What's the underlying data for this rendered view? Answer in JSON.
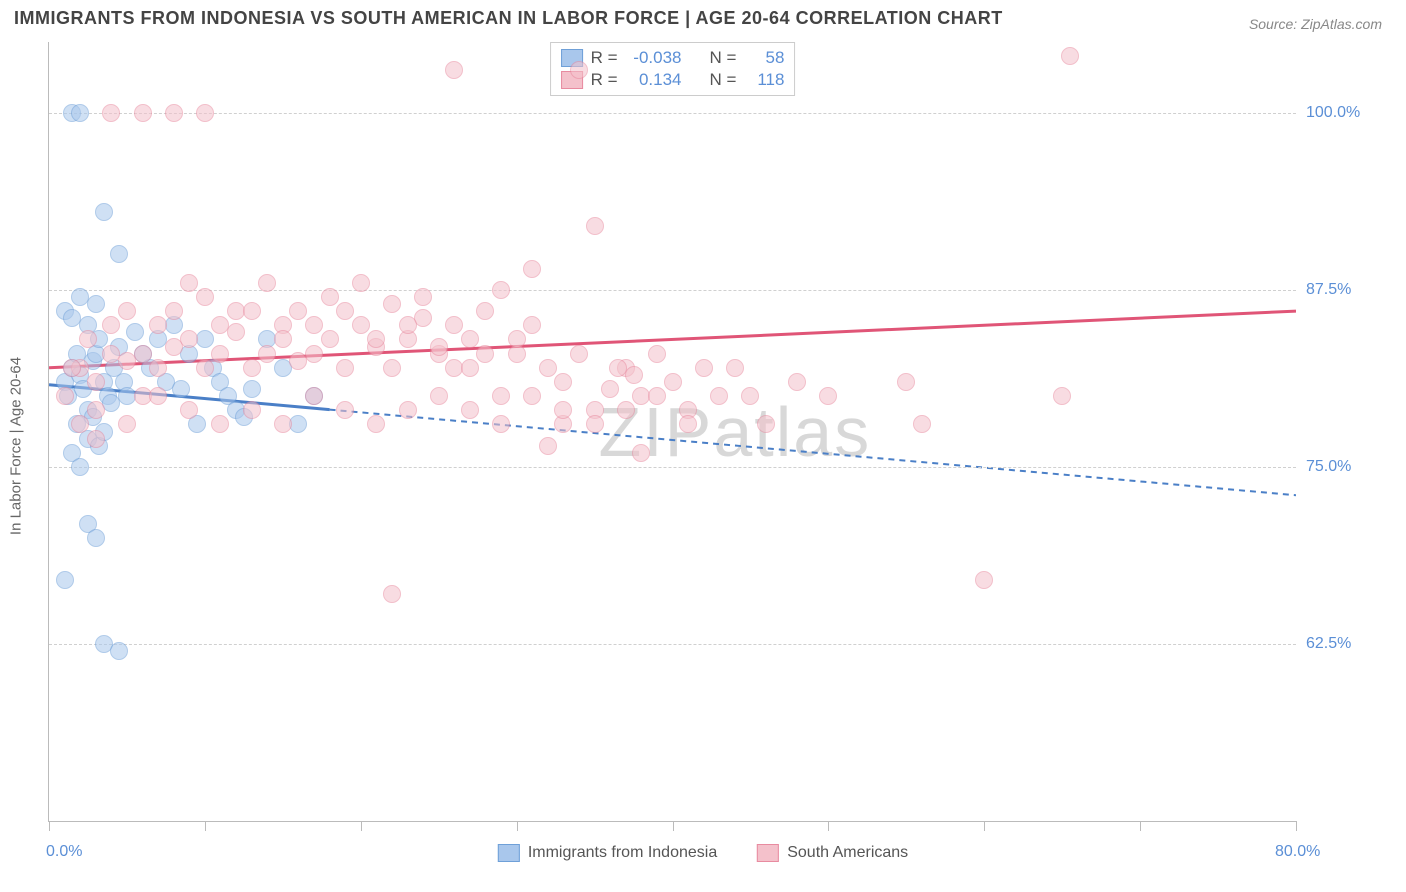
{
  "title": "IMMIGRANTS FROM INDONESIA VS SOUTH AMERICAN IN LABOR FORCE | AGE 20-64 CORRELATION CHART",
  "source": "Source: ZipAtlas.com",
  "watermark": "ZIPatlas",
  "chart": {
    "type": "scatter",
    "background_color": "#ffffff",
    "grid_color": "#d0d0d0",
    "axis_color": "#bbbbbb",
    "tick_label_color": "#5b8fd6",
    "axis_title_color": "#666666",
    "y_axis_title": "In Labor Force | Age 20-64",
    "xlim": [
      0,
      80
    ],
    "ylim": [
      50,
      105
    ],
    "x_min_label": "0.0%",
    "x_max_label": "80.0%",
    "y_ticks": [
      62.5,
      75.0,
      87.5,
      100.0
    ],
    "y_tick_labels": [
      "62.5%",
      "75.0%",
      "87.5%",
      "100.0%"
    ],
    "x_tick_positions": [
      0,
      10,
      20,
      30,
      40,
      50,
      60,
      70,
      80
    ],
    "point_radius": 9,
    "point_opacity": 0.55,
    "title_fontsize": 18,
    "tick_fontsize": 16,
    "series": [
      {
        "name": "Immigrants from Indonesia",
        "fill_color": "#a9c7ec",
        "stroke_color": "#6fa0d8",
        "trend_color": "#4a7fc7",
        "trend_dashed_after_x": 18,
        "trend": {
          "y_at_xmin": 80.8,
          "y_at_xmax": 73.0
        },
        "r_value": "-0.038",
        "n_value": "58",
        "points": [
          [
            1,
            81
          ],
          [
            1.2,
            80
          ],
          [
            1.5,
            82
          ],
          [
            1.8,
            83
          ],
          [
            2,
            81.5
          ],
          [
            2.2,
            80.5
          ],
          [
            2.5,
            79
          ],
          [
            2.8,
            82.5
          ],
          [
            3,
            83
          ],
          [
            3.2,
            84
          ],
          [
            3.5,
            81
          ],
          [
            3.8,
            80
          ],
          [
            4,
            79.5
          ],
          [
            4.2,
            82
          ],
          [
            4.5,
            83.5
          ],
          [
            4.8,
            81
          ],
          [
            5,
            80
          ],
          [
            1,
            86
          ],
          [
            1.5,
            85.5
          ],
          [
            2,
            87
          ],
          [
            2.5,
            85
          ],
          [
            3,
            86.5
          ],
          [
            1.5,
            76
          ],
          [
            2,
            75
          ],
          [
            2.5,
            77
          ],
          [
            2.8,
            78.5
          ],
          [
            3.2,
            76.5
          ],
          [
            3.5,
            77.5
          ],
          [
            1,
            67
          ],
          [
            1.8,
            78
          ],
          [
            5.5,
            84.5
          ],
          [
            6,
            83
          ],
          [
            6.5,
            82
          ],
          [
            7,
            84
          ],
          [
            7.5,
            81
          ],
          [
            8,
            85
          ],
          [
            8.5,
            80.5
          ],
          [
            9,
            83
          ],
          [
            9.5,
            78
          ],
          [
            10,
            84
          ],
          [
            10.5,
            82
          ],
          [
            11,
            81
          ],
          [
            11.5,
            80
          ],
          [
            12,
            79
          ],
          [
            12.5,
            78.5
          ],
          [
            13,
            80.5
          ],
          [
            14,
            84
          ],
          [
            15,
            82
          ],
          [
            16,
            78
          ],
          [
            17,
            80
          ],
          [
            3.5,
            93
          ],
          [
            4.5,
            90
          ],
          [
            2.5,
            71
          ],
          [
            3,
            70
          ],
          [
            3.5,
            62.5
          ],
          [
            4.5,
            62
          ],
          [
            1.5,
            100
          ],
          [
            2,
            100
          ]
        ]
      },
      {
        "name": "South Americans",
        "fill_color": "#f4c1cb",
        "stroke_color": "#e88ba0",
        "trend_color": "#e05577",
        "trend_dashed_after_x": 80,
        "trend": {
          "y_at_xmin": 82.0,
          "y_at_xmax": 86.0
        },
        "r_value": "0.134",
        "n_value": "118",
        "points": [
          [
            2,
            82
          ],
          [
            3,
            81
          ],
          [
            4,
            83
          ],
          [
            5,
            82.5
          ],
          [
            6,
            83
          ],
          [
            7,
            82
          ],
          [
            8,
            83.5
          ],
          [
            9,
            84
          ],
          [
            10,
            82
          ],
          [
            11,
            83
          ],
          [
            12,
            84.5
          ],
          [
            13,
            82
          ],
          [
            14,
            83
          ],
          [
            15,
            85
          ],
          [
            16,
            82.5
          ],
          [
            17,
            83
          ],
          [
            18,
            84
          ],
          [
            19,
            82
          ],
          [
            20,
            85
          ],
          [
            21,
            83.5
          ],
          [
            22,
            82
          ],
          [
            23,
            84
          ],
          [
            24,
            85.5
          ],
          [
            25,
            83
          ],
          [
            26,
            82
          ],
          [
            27,
            84
          ],
          [
            28,
            83
          ],
          [
            29,
            80
          ],
          [
            30,
            83
          ],
          [
            31,
            85
          ],
          [
            32,
            82
          ],
          [
            33,
            81
          ],
          [
            34,
            83
          ],
          [
            35,
            79
          ],
          [
            36,
            80.5
          ],
          [
            37,
            82
          ],
          [
            38,
            80
          ],
          [
            39,
            83
          ],
          [
            40,
            81
          ],
          [
            41,
            79
          ],
          [
            42,
            82
          ],
          [
            45,
            80
          ],
          [
            48,
            81
          ],
          [
            50,
            80
          ],
          [
            1,
            80
          ],
          [
            2,
            78
          ],
          [
            3,
            77
          ],
          [
            2.5,
            84
          ],
          [
            4,
            85
          ],
          [
            1.5,
            82
          ],
          [
            6,
            80
          ],
          [
            8,
            86
          ],
          [
            10,
            87
          ],
          [
            12,
            86
          ],
          [
            14,
            88
          ],
          [
            16,
            86
          ],
          [
            18,
            87
          ],
          [
            20,
            88
          ],
          [
            22,
            86.5
          ],
          [
            24,
            87
          ],
          [
            26,
            85
          ],
          [
            28,
            86
          ],
          [
            26,
            103
          ],
          [
            34,
            103
          ],
          [
            35,
            92
          ],
          [
            31,
            89
          ],
          [
            29,
            87.5
          ],
          [
            22,
            66
          ],
          [
            32,
            76.5
          ],
          [
            38,
            76
          ],
          [
            36.5,
            82
          ],
          [
            37.5,
            81.5
          ],
          [
            30,
            84
          ],
          [
            33,
            78
          ],
          [
            55,
            81
          ],
          [
            56,
            78
          ],
          [
            65,
            80
          ],
          [
            65.5,
            104
          ],
          [
            60,
            67
          ],
          [
            4,
            100
          ],
          [
            6,
            100
          ],
          [
            8,
            100
          ],
          [
            10,
            100
          ],
          [
            5,
            86
          ],
          [
            7,
            85
          ],
          [
            9,
            88
          ],
          [
            11,
            85
          ],
          [
            13,
            86
          ],
          [
            15,
            84
          ],
          [
            17,
            85
          ],
          [
            19,
            86
          ],
          [
            21,
            84
          ],
          [
            23,
            85
          ],
          [
            25,
            83.5
          ],
          [
            27,
            82
          ],
          [
            3,
            79
          ],
          [
            5,
            78
          ],
          [
            7,
            80
          ],
          [
            9,
            79
          ],
          [
            11,
            78
          ],
          [
            13,
            79
          ],
          [
            15,
            78
          ],
          [
            17,
            80
          ],
          [
            19,
            79
          ],
          [
            21,
            78
          ],
          [
            23,
            79
          ],
          [
            25,
            80
          ],
          [
            27,
            79
          ],
          [
            29,
            78
          ],
          [
            31,
            80
          ],
          [
            33,
            79
          ],
          [
            35,
            78
          ],
          [
            37,
            79
          ],
          [
            39,
            80
          ],
          [
            41,
            78
          ],
          [
            43,
            80
          ],
          [
            44,
            82
          ],
          [
            46,
            78
          ]
        ]
      }
    ]
  },
  "stats_box": {
    "r_label": "R =",
    "n_label": "N ="
  },
  "bottom_legend": {
    "items": [
      "Immigrants from Indonesia",
      "South Americans"
    ]
  }
}
